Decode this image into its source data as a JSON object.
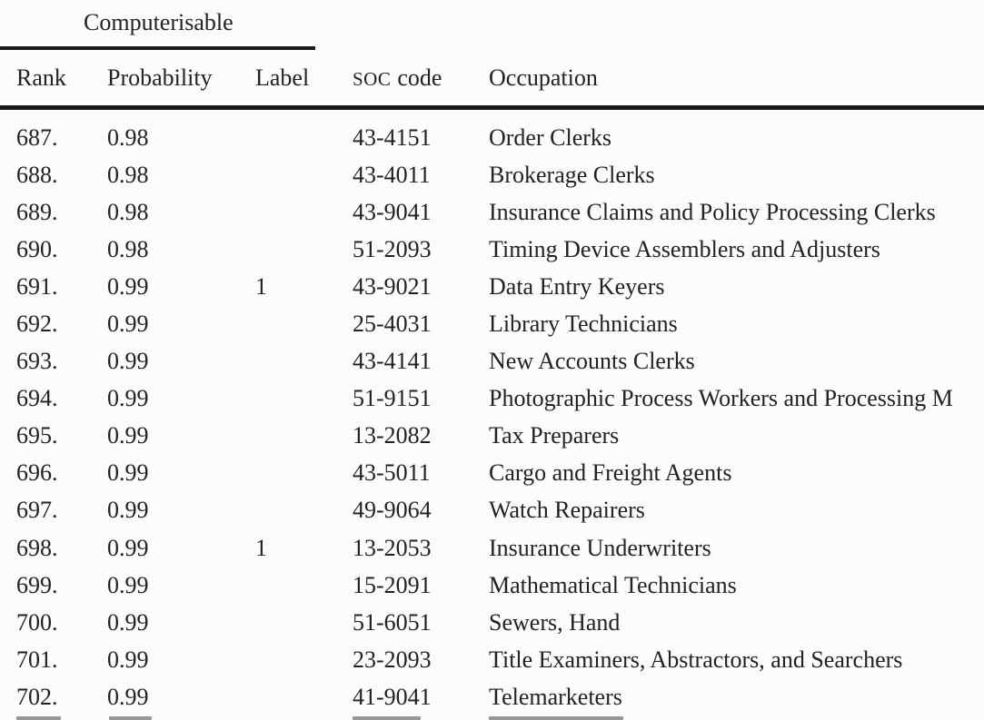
{
  "page": {
    "background": "#fcfcfc",
    "text_color": "#222222",
    "rule_color": "#1a1a1a",
    "clipped_row_fragment_color": "#989898"
  },
  "table": {
    "group_header": "Computerisable",
    "header": {
      "rank": "Rank",
      "probability": "Probability",
      "label": "Label",
      "soc_caps": "SOC",
      "soc_rest": "code",
      "occupation": "Occupation"
    },
    "rows": [
      {
        "rank": "687.",
        "probability": "0.98",
        "label": "",
        "soc": "43-4151",
        "occupation": "Order Clerks"
      },
      {
        "rank": "688.",
        "probability": "0.98",
        "label": "",
        "soc": "43-4011",
        "occupation": "Brokerage Clerks"
      },
      {
        "rank": "689.",
        "probability": "0.98",
        "label": "",
        "soc": "43-9041",
        "occupation": "Insurance Claims and Policy Processing Clerks"
      },
      {
        "rank": "690.",
        "probability": "0.98",
        "label": "",
        "soc": "51-2093",
        "occupation": "Timing Device Assemblers and Adjusters"
      },
      {
        "rank": "691.",
        "probability": "0.99",
        "label": "1",
        "soc": "43-9021",
        "occupation": "Data Entry Keyers"
      },
      {
        "rank": "692.",
        "probability": "0.99",
        "label": "",
        "soc": "25-4031",
        "occupation": "Library Technicians"
      },
      {
        "rank": "693.",
        "probability": "0.99",
        "label": "",
        "soc": "43-4141",
        "occupation": "New Accounts Clerks"
      },
      {
        "rank": "694.",
        "probability": "0.99",
        "label": "",
        "soc": "51-9151",
        "occupation": "Photographic Process Workers and Processing M"
      },
      {
        "rank": "695.",
        "probability": "0.99",
        "label": "",
        "soc": "13-2082",
        "occupation": "Tax Preparers"
      },
      {
        "rank": "696.",
        "probability": "0.99",
        "label": "",
        "soc": "43-5011",
        "occupation": "Cargo and Freight Agents"
      },
      {
        "rank": "697.",
        "probability": "0.99",
        "label": "",
        "soc": "49-9064",
        "occupation": "Watch Repairers"
      },
      {
        "rank": "698.",
        "probability": "0.99",
        "label": "1",
        "soc": "13-2053",
        "occupation": "Insurance Underwriters"
      },
      {
        "rank": "699.",
        "probability": "0.99",
        "label": "",
        "soc": "15-2091",
        "occupation": "Mathematical Technicians"
      },
      {
        "rank": "700.",
        "probability": "0.99",
        "label": "",
        "soc": "51-6051",
        "occupation": "Sewers, Hand"
      },
      {
        "rank": "701.",
        "probability": "0.99",
        "label": "",
        "soc": "23-2093",
        "occupation": "Title Examiners, Abstractors, and Searchers"
      },
      {
        "rank": "702.",
        "probability": "0.99",
        "label": "",
        "soc": "41-9041",
        "occupation": "Telemarketers"
      }
    ]
  }
}
